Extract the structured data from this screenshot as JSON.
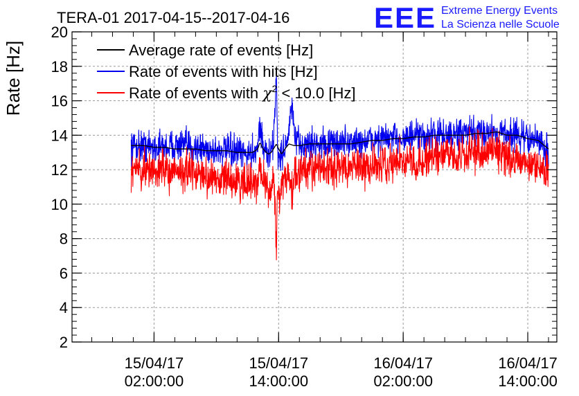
{
  "header": {
    "title": "TERA-01 2017-04-15--2017-04-16",
    "logo_text": "EEE",
    "logo_line1": "Extreme Energy Events",
    "logo_line2": "La Scienza nelle Scuole"
  },
  "colors": {
    "average": "#000000",
    "hits": "#0000ee",
    "chi2": "#ff0000",
    "grid": "#9a9a9a",
    "logo": "#1a1aff"
  },
  "chart_data": {
    "type": "line",
    "title": "TERA-01 2017-04-15--2017-04-16",
    "xlabel": "",
    "ylabel": "Rate [Hz]",
    "x_unit": "hours since 15/04/17 00:00:00",
    "xlim": [
      -5.9,
      40.8
    ],
    "ylim": [
      2,
      20
    ],
    "yticks": [
      2,
      4,
      6,
      8,
      10,
      12,
      14,
      16,
      18,
      20
    ],
    "xticks": [
      {
        "x": 2,
        "line1": "15/04/17",
        "line2": "02:00:00"
      },
      {
        "x": 14,
        "line1": "15/04/17",
        "line2": "14:00:00"
      },
      {
        "x": 26,
        "line1": "16/04/17",
        "line2": "02:00:00"
      },
      {
        "x": 38,
        "line1": "16/04/17",
        "line2": "14:00:00"
      }
    ],
    "grid": true,
    "legend_position": "top-left",
    "legend": [
      {
        "key": "average",
        "label": "Average rate of events [Hz]"
      },
      {
        "key": "hits",
        "label": "Rate of events with hits [Hz]"
      },
      {
        "key": "chi2",
        "label_prefix": "Rate of events with ",
        "label_symbol": "χ",
        "label_sup": "2",
        "label_suffix": " < 10.0 [Hz]"
      }
    ],
    "series": [
      {
        "key": "average",
        "name": "Average rate of events [Hz]",
        "x": [
          -0.2,
          1,
          2,
          3,
          4,
          5,
          6,
          7,
          8,
          9,
          10,
          10.5,
          11,
          11.5,
          12,
          12.2,
          12.5,
          13,
          13.3,
          13.5,
          13.8,
          14,
          14.3,
          14.6,
          15,
          15.5,
          16,
          17,
          18,
          19,
          20,
          21,
          22,
          23,
          24,
          25,
          26,
          27,
          28,
          29,
          30,
          31,
          32,
          33,
          34,
          35,
          36,
          37,
          38,
          39,
          40
        ],
        "y": [
          13.4,
          13.4,
          13.3,
          13.3,
          13.2,
          13.2,
          13.2,
          13.1,
          13.1,
          13.1,
          13.0,
          13.0,
          13.0,
          13.0,
          13.2,
          13.6,
          13.2,
          12.9,
          13.0,
          13.2,
          13.5,
          13.2,
          12.9,
          13.2,
          13.5,
          13.4,
          13.4,
          13.5,
          13.5,
          13.5,
          13.5,
          13.5,
          13.6,
          13.7,
          13.7,
          13.8,
          13.8,
          13.9,
          13.9,
          14.0,
          14.0,
          14.0,
          14.0,
          14.1,
          14.1,
          14.2,
          14.0,
          14.0,
          13.8,
          13.7,
          13.2
        ]
      },
      {
        "key": "hits",
        "name": "Rate of events with hits [Hz]",
        "noise": 0.45,
        "x": [
          -0.2,
          1,
          2,
          3,
          4,
          5,
          6,
          7,
          8,
          9,
          10,
          10.5,
          11,
          11.5,
          12,
          12.2,
          12.5,
          13,
          13.3,
          13.5,
          13.8,
          13.9,
          14.1,
          14.3,
          14.6,
          15,
          15.3,
          15.6,
          16,
          17,
          18,
          19,
          20,
          21,
          22,
          23,
          24,
          25,
          26,
          27,
          28,
          29,
          30,
          31,
          32,
          33,
          34,
          35,
          36,
          37,
          38,
          39,
          40
        ],
        "y": [
          13.4,
          13.4,
          13.3,
          13.3,
          13.4,
          13.4,
          13.3,
          13.2,
          13.1,
          13.1,
          13.0,
          12.9,
          12.9,
          13.0,
          13.4,
          14.8,
          13.3,
          12.8,
          13.0,
          13.6,
          17.6,
          13.2,
          12.4,
          13.0,
          13.3,
          14.2,
          15.8,
          13.7,
          13.4,
          13.5,
          13.5,
          13.5,
          13.6,
          13.6,
          13.6,
          13.7,
          13.8,
          13.8,
          13.9,
          13.9,
          13.9,
          14.0,
          14.0,
          14.0,
          14.1,
          14.1,
          14.2,
          14.2,
          14.1,
          14.0,
          13.8,
          13.7,
          13.0
        ]
      },
      {
        "key": "chi2",
        "name": "Rate of events with χ2 < 10.0 [Hz]",
        "noise": 0.55,
        "x": [
          -0.2,
          1,
          2,
          3,
          4,
          5,
          6,
          7,
          8,
          9,
          10,
          10.5,
          11,
          11.5,
          12,
          12.2,
          12.5,
          13,
          13.3,
          13.5,
          13.8,
          13.9,
          14.1,
          14.3,
          14.6,
          15,
          15.3,
          15.6,
          16,
          17,
          18,
          19,
          20,
          21,
          22,
          23,
          24,
          25,
          26,
          27,
          28,
          29,
          30,
          31,
          32,
          33,
          34,
          35,
          36,
          37,
          38,
          39,
          40
        ],
        "y": [
          12.1,
          12.0,
          12.0,
          12.0,
          11.9,
          11.9,
          11.8,
          11.6,
          11.5,
          11.4,
          11.3,
          11.2,
          11.2,
          11.1,
          11.3,
          12.0,
          11.5,
          11.0,
          10.9,
          11.6,
          8.0,
          11.0,
          10.3,
          11.2,
          11.6,
          11.3,
          10.8,
          11.8,
          11.9,
          12.0,
          12.1,
          12.1,
          12.2,
          12.2,
          12.2,
          12.3,
          12.4,
          12.4,
          12.5,
          12.5,
          12.6,
          12.7,
          12.8,
          12.9,
          13.0,
          13.1,
          13.2,
          13.1,
          12.9,
          12.7,
          12.4,
          12.2,
          11.8
        ]
      }
    ]
  }
}
